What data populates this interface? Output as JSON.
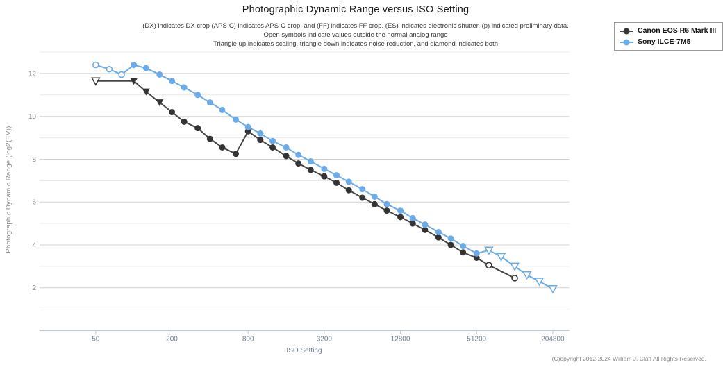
{
  "title": "Photographic Dynamic Range versus ISO Setting",
  "subtitle_lines": [
    "(DX) indicates DX crop (APS-C) indicates APS-C crop, and (FF) indicates FF crop. (ES) indicates electronic shutter. (p) indicated preliminary data.",
    "Open symbols indicate values outside the normal analog range",
    "Triangle up indicates scaling, triangle down indicates noise reduction, and diamond indicates both"
  ],
  "copyright": "(C)opyright 2012-2024 William J. Claff All Rights Reserved.",
  "legend": {
    "position": "top-right",
    "items": [
      {
        "label": "Canon EOS R6 Mark III",
        "color": "#343434",
        "line_color": "#474747"
      },
      {
        "label": "Sony ILCE-7M5",
        "color": "#6babe9",
        "line_color": "#6babe9"
      }
    ]
  },
  "colors": {
    "background": "#ffffff",
    "gridline_major": "#d3d3d3",
    "gridline_minor": "#eaeaea",
    "axis_line": "#b7c9db",
    "x_tick_label": "#72808f",
    "y_tick_label": "#8c8c8c",
    "canon_series": "#343434",
    "sony_series": "#6babe9"
  },
  "chart_data": {
    "type": "line",
    "title": "Photographic Dynamic Range versus ISO Setting",
    "xlabel": "ISO Setting",
    "ylabel": "Photographic Dynamic Range (log2(EV))",
    "x_scale": "log2",
    "grid": "horizontal-only",
    "legend_position": "top-right",
    "xlim": [
      18,
      276000
    ],
    "ylim": [
      0,
      13.05
    ],
    "x_ticks": [
      50,
      200,
      800,
      3200,
      12800,
      51200,
      204800
    ],
    "y_ticks": [
      2,
      4,
      6,
      8,
      10,
      12
    ],
    "y_minor_gridlines": [
      1,
      3,
      5,
      7,
      9,
      11,
      13
    ],
    "marker_key": {
      "c": "filled circle (normal value)",
      "o": "open circle (outside normal analog range)",
      "t": "filled triangle-down (noise reduction)",
      "ot": "open triangle-down (outside analog range, noise reduction)"
    },
    "series": [
      {
        "name": "Canon EOS R6 Mark III",
        "color": "#343434",
        "line_color": "#474747",
        "points": [
          [
            50,
            11.65,
            "ot"
          ],
          [
            100,
            11.65,
            "t"
          ],
          [
            125,
            11.15,
            "t"
          ],
          [
            160,
            10.65,
            "t"
          ],
          [
            200,
            10.2,
            "c"
          ],
          [
            250,
            9.75,
            "c"
          ],
          [
            320,
            9.45,
            "c"
          ],
          [
            400,
            8.95,
            "c"
          ],
          [
            500,
            8.55,
            "c"
          ],
          [
            640,
            8.25,
            "c"
          ],
          [
            800,
            9.3,
            "c"
          ],
          [
            1000,
            8.9,
            "c"
          ],
          [
            1250,
            8.55,
            "c"
          ],
          [
            1600,
            8.15,
            "c"
          ],
          [
            2000,
            7.8,
            "c"
          ],
          [
            2500,
            7.5,
            "c"
          ],
          [
            3200,
            7.2,
            "c"
          ],
          [
            4000,
            6.9,
            "c"
          ],
          [
            5000,
            6.55,
            "c"
          ],
          [
            6400,
            6.2,
            "c"
          ],
          [
            8000,
            5.9,
            "c"
          ],
          [
            10000,
            5.6,
            "c"
          ],
          [
            12800,
            5.3,
            "c"
          ],
          [
            16000,
            5.0,
            "c"
          ],
          [
            20000,
            4.7,
            "c"
          ],
          [
            25600,
            4.35,
            "c"
          ],
          [
            32000,
            4.0,
            "c"
          ],
          [
            40000,
            3.65,
            "c"
          ],
          [
            51200,
            3.4,
            "c"
          ],
          [
            64000,
            3.05,
            "o"
          ],
          [
            102400,
            2.45,
            "o"
          ]
        ]
      },
      {
        "name": "Sony ILCE-7M5",
        "color": "#6babe9",
        "line_color": "#6babe9",
        "points": [
          [
            50,
            12.4,
            "o"
          ],
          [
            64,
            12.2,
            "o"
          ],
          [
            80,
            11.95,
            "o"
          ],
          [
            100,
            12.4,
            "c"
          ],
          [
            125,
            12.25,
            "c"
          ],
          [
            160,
            11.95,
            "c"
          ],
          [
            200,
            11.65,
            "c"
          ],
          [
            250,
            11.35,
            "c"
          ],
          [
            320,
            11.0,
            "c"
          ],
          [
            400,
            10.65,
            "c"
          ],
          [
            500,
            10.3,
            "c"
          ],
          [
            640,
            9.85,
            "c"
          ],
          [
            800,
            9.5,
            "c"
          ],
          [
            1000,
            9.2,
            "c"
          ],
          [
            1250,
            8.85,
            "c"
          ],
          [
            1600,
            8.55,
            "c"
          ],
          [
            2000,
            8.2,
            "c"
          ],
          [
            2500,
            7.9,
            "c"
          ],
          [
            3200,
            7.55,
            "c"
          ],
          [
            4000,
            7.25,
            "c"
          ],
          [
            5000,
            6.95,
            "c"
          ],
          [
            6400,
            6.6,
            "c"
          ],
          [
            8000,
            6.25,
            "c"
          ],
          [
            10000,
            5.9,
            "c"
          ],
          [
            12800,
            5.6,
            "c"
          ],
          [
            16000,
            5.25,
            "c"
          ],
          [
            20000,
            4.95,
            "c"
          ],
          [
            25600,
            4.6,
            "c"
          ],
          [
            32000,
            4.3,
            "c"
          ],
          [
            40000,
            3.95,
            "c"
          ],
          [
            51200,
            3.6,
            "c"
          ],
          [
            64000,
            3.75,
            "ot"
          ],
          [
            80000,
            3.45,
            "ot"
          ],
          [
            102400,
            3.0,
            "ot"
          ],
          [
            128000,
            2.6,
            "ot"
          ],
          [
            160000,
            2.3,
            "ot"
          ],
          [
            204800,
            1.95,
            "ot"
          ]
        ]
      }
    ]
  }
}
